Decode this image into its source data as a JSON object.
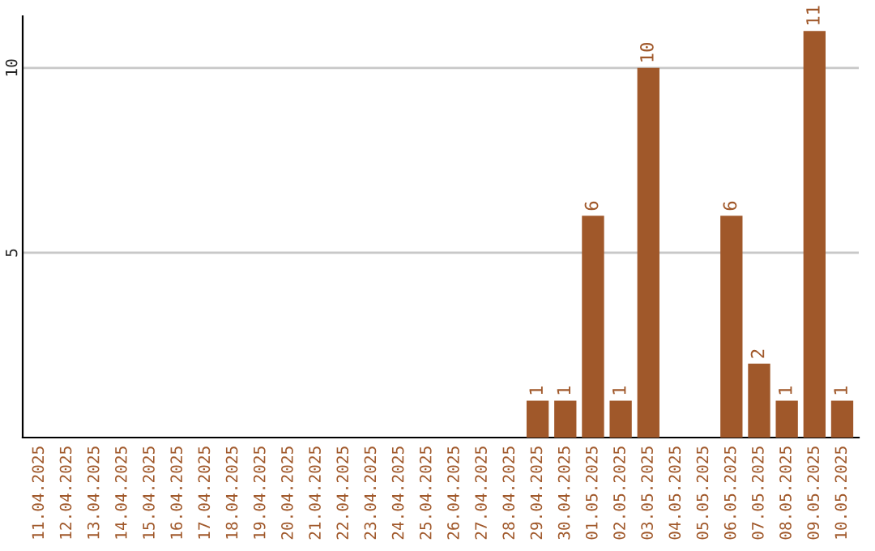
{
  "chart_data": {
    "type": "bar",
    "categories": [
      "11.04.2025",
      "12.04.2025",
      "13.04.2025",
      "14.04.2025",
      "15.04.2025",
      "16.04.2025",
      "17.04.2025",
      "18.04.2025",
      "19.04.2025",
      "20.04.2025",
      "21.04.2025",
      "22.04.2025",
      "23.04.2025",
      "24.04.2025",
      "25.04.2025",
      "26.04.2025",
      "27.04.2025",
      "28.04.2025",
      "29.04.2025",
      "30.04.2025",
      "01.05.2025",
      "02.05.2025",
      "03.05.2025",
      "04.05.2025",
      "05.05.2025",
      "06.05.2025",
      "07.05.2025",
      "08.05.2025",
      "09.05.2025",
      "10.05.2025"
    ],
    "values": [
      null,
      null,
      null,
      null,
      null,
      null,
      null,
      null,
      null,
      null,
      null,
      null,
      null,
      null,
      null,
      null,
      null,
      null,
      1,
      1,
      6,
      1,
      10,
      null,
      null,
      6,
      2,
      1,
      11,
      1
    ],
    "value_labels": [
      null,
      null,
      null,
      null,
      null,
      null,
      null,
      null,
      null,
      null,
      null,
      null,
      null,
      null,
      null,
      null,
      null,
      null,
      "1",
      "1",
      "6",
      "1",
      "10",
      null,
      null,
      "6",
      "2",
      "1",
      "11",
      "1"
    ],
    "color": "#a0582a",
    "ylim": [
      0,
      11.4
    ],
    "yticks": [
      5,
      10
    ],
    "grid": "y",
    "legend": false
  }
}
